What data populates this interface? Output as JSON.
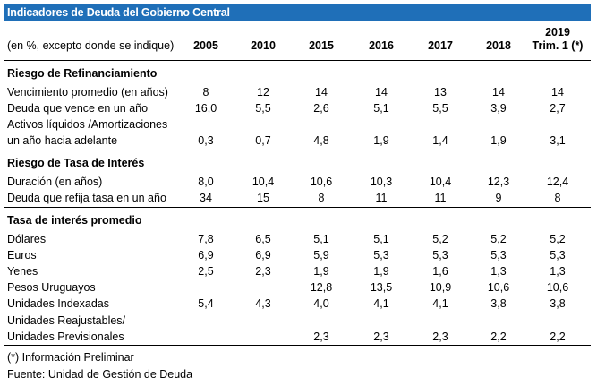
{
  "title": "Indicadores de Deuda del Gobierno Central",
  "header": {
    "label": "(en %, excepto donde se indique)",
    "years": [
      "2005",
      "2010",
      "2015",
      "2016",
      "2017",
      "2018"
    ],
    "last_top": "2019",
    "last_bottom": "Trim. 1 (*)"
  },
  "sections": [
    {
      "title": "Riesgo de Refinanciamiento",
      "rows": [
        {
          "label": "Vencimiento promedio (en años)",
          "values": [
            "8",
            "12",
            "14",
            "14",
            "13",
            "14",
            "14"
          ]
        },
        {
          "label": "Deuda que vence en un año",
          "values": [
            "16,0",
            "5,5",
            "2,6",
            "5,1",
            "5,5",
            "3,9",
            "2,7"
          ]
        },
        {
          "label": "Activos líquidos /Amortizaciones",
          "label2": "un año hacia adelante",
          "values": [
            "0,3",
            "0,7",
            "4,8",
            "1,9",
            "1,4",
            "1,9",
            "3,1"
          ]
        }
      ]
    },
    {
      "title": "Riesgo de Tasa de Interés",
      "rows": [
        {
          "label": "Duración (en años)",
          "values": [
            "8,0",
            "10,4",
            "10,6",
            "10,3",
            "10,4",
            "12,3",
            "12,4"
          ]
        },
        {
          "label": "Deuda que refija tasa en un año",
          "values": [
            "34",
            "15",
            "8",
            "11",
            "11",
            "9",
            "8"
          ]
        }
      ]
    },
    {
      "title": "Tasa de interés promedio",
      "rows": [
        {
          "label": "Dólares",
          "values": [
            "7,8",
            "6,5",
            "5,1",
            "5,1",
            "5,2",
            "5,2",
            "5,2"
          ]
        },
        {
          "label": "Euros",
          "values": [
            "6,9",
            "6,9",
            "5,9",
            "5,3",
            "5,3",
            "5,3",
            "5,3"
          ]
        },
        {
          "label": "Yenes",
          "values": [
            "2,5",
            "2,3",
            "1,9",
            "1,9",
            "1,6",
            "1,3",
            "1,3"
          ]
        },
        {
          "label": "Pesos Uruguayos",
          "values": [
            "",
            "",
            "12,8",
            "13,5",
            "10,9",
            "10,6",
            "10,6"
          ]
        },
        {
          "label": "Unidades Indexadas",
          "values": [
            "5,4",
            "4,3",
            "4,0",
            "4,1",
            "4,1",
            "3,8",
            "3,8"
          ]
        },
        {
          "label": "Unidades Reajustables/",
          "label2": "Unidades Previsionales",
          "values": [
            "",
            "",
            "2,3",
            "2,3",
            "2,3",
            "2,2",
            "2,2"
          ]
        }
      ]
    }
  ],
  "footnotes": [
    "(*) Información Preliminar",
    "Fuente: Unidad de Gestión de Deuda"
  ]
}
